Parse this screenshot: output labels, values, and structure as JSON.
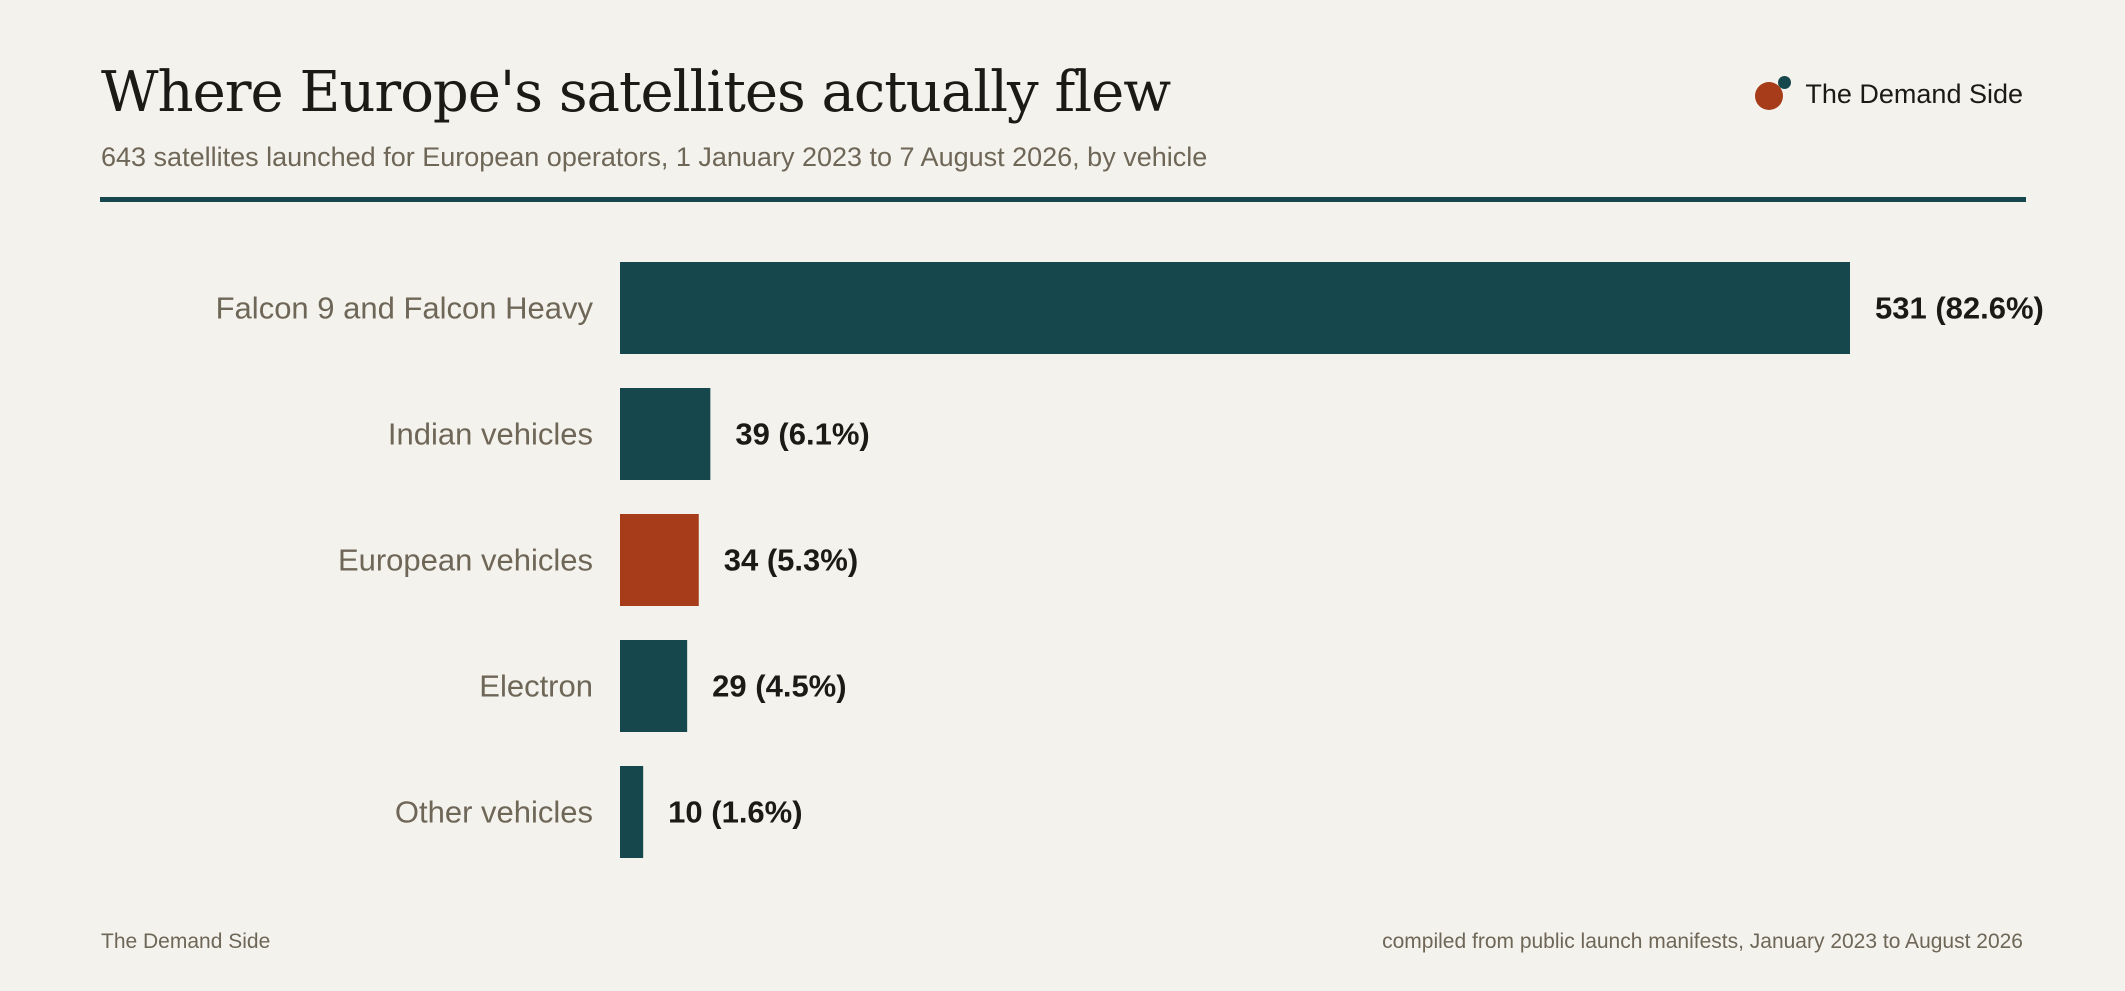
{
  "header": {
    "brand": "The Demand Side"
  },
  "footer": {
    "source_left": "The Demand Side",
    "source_right": "compiled from public launch manifests, January 2023 to August 2026"
  },
  "colors": {
    "primary": "#16474d",
    "highlight": "#a63c19",
    "label": "#6e6657",
    "value_text": "#1c1a17"
  },
  "chart_data": {
    "type": "bar",
    "orientation": "horizontal",
    "title": "Where Europe's satellites actually flew",
    "subtitle": "643 satellites launched for European operators, 1 January 2023 to 7 August 2026, by vehicle",
    "xlabel": "",
    "ylabel": "",
    "grid": false,
    "xlim": [
      0,
      531
    ],
    "categories": [
      "Falcon 9 and Falcon Heavy",
      "Indian vehicles",
      "European vehicles",
      "Electron",
      "Other vehicles"
    ],
    "values": [
      531,
      39,
      34,
      29,
      10
    ],
    "percent_labels": [
      "(82.6%)",
      "(6.1%)",
      "(5.3%)",
      "(4.5%)",
      "(1.6%)"
    ],
    "highlight_category": "European vehicles"
  }
}
